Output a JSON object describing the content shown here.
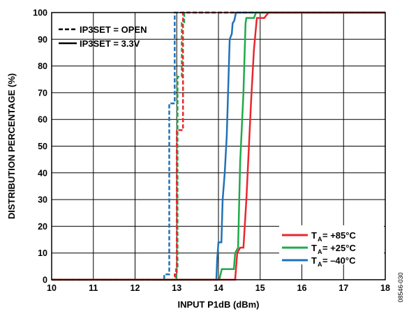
{
  "chart_data": {
    "type": "line",
    "title": "",
    "xlabel": "INPUT P1dB (dBm)",
    "ylabel": "DISTRIBUTION PERCENTAGE (%)",
    "xlim": [
      10,
      18
    ],
    "ylim": [
      0,
      100
    ],
    "x_ticks": [
      "10",
      "11",
      "12",
      "13",
      "14",
      "15",
      "16",
      "17",
      "18"
    ],
    "y_ticks": [
      "0",
      "10",
      "20",
      "30",
      "40",
      "50",
      "60",
      "70",
      "80",
      "90",
      "100"
    ],
    "grid": true,
    "figure_id": "08546-030",
    "style_legend": {
      "placement": "top-left",
      "entries": [
        {
          "label": "IP3SET = OPEN",
          "dash": "dashed"
        },
        {
          "label": "IP3SET = 3.3V",
          "dash": "solid"
        }
      ]
    },
    "color_legend": {
      "placement": "bottom-right",
      "entries": [
        {
          "prefix": "T",
          "sub": "A",
          "suffix": " = +85°C",
          "color": "#e8272d"
        },
        {
          "prefix": "T",
          "sub": "A",
          "suffix": " = +25°C",
          "color": "#1faa4b"
        },
        {
          "prefix": "T",
          "sub": "A",
          "suffix": " = –40°C",
          "color": "#1f72b8"
        }
      ]
    },
    "series": [
      {
        "color": "#1f72b8",
        "dash": "dashed",
        "points": [
          [
            10,
            0
          ],
          [
            12.7,
            0
          ],
          [
            12.7,
            2
          ],
          [
            12.82,
            2
          ],
          [
            12.82,
            66
          ],
          [
            12.95,
            66
          ],
          [
            12.95,
            100
          ],
          [
            18,
            100
          ]
        ]
      },
      {
        "color": "#1faa4b",
        "dash": "dashed",
        "points": [
          [
            10,
            0
          ],
          [
            12.98,
            0
          ],
          [
            12.98,
            4
          ],
          [
            13.02,
            4
          ],
          [
            13.02,
            76
          ],
          [
            13.12,
            76
          ],
          [
            13.12,
            96
          ],
          [
            13.18,
            96
          ],
          [
            13.18,
            100
          ],
          [
            18,
            100
          ]
        ]
      },
      {
        "color": "#e8272d",
        "dash": "dashed",
        "points": [
          [
            10,
            0
          ],
          [
            12.95,
            0
          ],
          [
            12.95,
            2
          ],
          [
            13.0,
            2
          ],
          [
            13.0,
            56
          ],
          [
            13.15,
            56
          ],
          [
            13.15,
            100
          ],
          [
            18,
            100
          ]
        ]
      },
      {
        "color": "#1f72b8",
        "dash": "solid",
        "points": [
          [
            10,
            0
          ],
          [
            13.95,
            0
          ],
          [
            13.97,
            8
          ],
          [
            14.0,
            14
          ],
          [
            14.07,
            14
          ],
          [
            14.1,
            30
          ],
          [
            14.15,
            40
          ],
          [
            14.2,
            54
          ],
          [
            14.27,
            90
          ],
          [
            14.32,
            92
          ],
          [
            14.34,
            96
          ],
          [
            14.38,
            97
          ],
          [
            14.42,
            100
          ],
          [
            18,
            100
          ]
        ]
      },
      {
        "color": "#1faa4b",
        "dash": "solid",
        "points": [
          [
            10,
            0
          ],
          [
            14.02,
            0
          ],
          [
            14.08,
            4
          ],
          [
            14.37,
            4
          ],
          [
            14.4,
            10
          ],
          [
            14.47,
            12
          ],
          [
            14.52,
            44
          ],
          [
            14.6,
            70
          ],
          [
            14.65,
            96
          ],
          [
            14.67,
            98
          ],
          [
            14.85,
            98
          ],
          [
            14.9,
            100
          ],
          [
            18,
            100
          ]
        ]
      },
      {
        "color": "#e8272d",
        "dash": "solid",
        "points": [
          [
            10,
            0
          ],
          [
            14.4,
            0
          ],
          [
            14.45,
            10
          ],
          [
            14.52,
            12
          ],
          [
            14.6,
            12
          ],
          [
            14.67,
            30
          ],
          [
            14.78,
            66
          ],
          [
            14.85,
            86
          ],
          [
            14.92,
            98
          ],
          [
            15.1,
            98
          ],
          [
            15.2,
            100
          ],
          [
            18,
            100
          ]
        ]
      }
    ]
  }
}
